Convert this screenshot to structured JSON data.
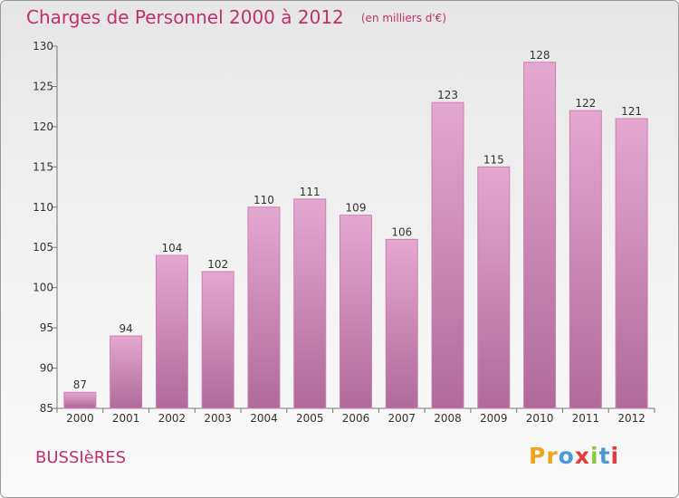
{
  "header": {
    "title": "Charges de Personnel 2000 à 2012",
    "subtitle": "(en milliers d'€)"
  },
  "footer": {
    "commune": "BUSSIèRES",
    "logo": {
      "letters": [
        "P",
        "r",
        "o",
        "x",
        "i",
        "t",
        "i"
      ],
      "colors": [
        "#f2a21c",
        "#f2a21c",
        "#4a9ad6",
        "#e33b3b",
        "#8cc63f",
        "#4a9ad6",
        "#e33b3b"
      ]
    }
  },
  "chart_data": {
    "type": "bar",
    "categories": [
      "2000",
      "2001",
      "2002",
      "2003",
      "2004",
      "2005",
      "2006",
      "2007",
      "2008",
      "2009",
      "2010",
      "2011",
      "2012"
    ],
    "values": [
      87,
      94,
      104,
      102,
      110,
      111,
      109,
      106,
      123,
      115,
      128,
      122,
      121
    ],
    "data_labels": [
      "87",
      "94",
      "104",
      "102",
      "110",
      "111",
      "109",
      "106",
      "123",
      "115",
      "128",
      "122",
      "121"
    ],
    "ylim": [
      85,
      130
    ],
    "yticks": [
      85,
      90,
      95,
      100,
      105,
      110,
      115,
      120,
      125,
      130
    ],
    "grid": false,
    "colors": {
      "bar_top": "#e4a8cf",
      "bar_bottom": "#b06a98",
      "bar_edge": "#cf7fb4",
      "axis": "#777777",
      "text": "#333333"
    }
  }
}
